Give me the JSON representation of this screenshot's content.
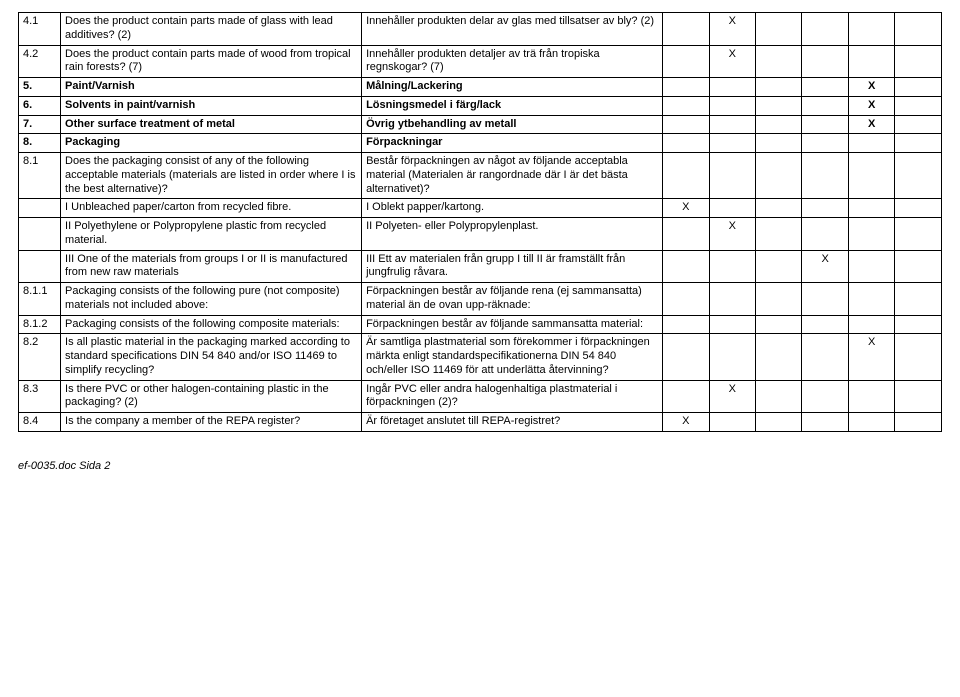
{
  "rows": [
    {
      "num": "4.1",
      "en": "Does the product contain parts made of glass with lead additives? (2)",
      "sv": "Innehåller produkten delar av glas med tillsatser av bly? (2)",
      "x": [
        false,
        true,
        false,
        false,
        false,
        false
      ],
      "bold": false
    },
    {
      "num": "4.2",
      "en": "Does the product contain parts made of wood from tropical rain forests? (7)",
      "sv": "Innehåller produkten detaljer av trä från tropiska regnskogar? (7)",
      "x": [
        false,
        true,
        false,
        false,
        false,
        false
      ],
      "bold": false
    },
    {
      "num": "5.",
      "en": "Paint/Varnish",
      "sv": "Målning/Lackering",
      "x": [
        false,
        false,
        false,
        false,
        true,
        false
      ],
      "bold": true
    },
    {
      "num": "6.",
      "en": "Solvents in paint/varnish",
      "sv": "Lösningsmedel i färg/lack",
      "x": [
        false,
        false,
        false,
        false,
        true,
        false
      ],
      "bold": true
    },
    {
      "num": "7.",
      "en": "Other surface treatment of metal",
      "sv": "Övrig ytbehandling av metall",
      "x": [
        false,
        false,
        false,
        false,
        true,
        false
      ],
      "bold": true
    },
    {
      "num": "8.",
      "en": "Packaging",
      "sv": "Förpackningar",
      "x": [
        false,
        false,
        false,
        false,
        false,
        false
      ],
      "bold": true
    },
    {
      "num": "8.1",
      "en": "Does the packaging consist of any of the following acceptable materials (materials are listed in order where I is the best alternative)?",
      "sv": "Består förpackningen av något av följande acceptabla material (Materialen är rangordnade där I är det bästa alternativet)?",
      "x": [
        false,
        false,
        false,
        false,
        false,
        false
      ],
      "bold": false
    },
    {
      "num": "",
      "en": "I Unbleached paper/carton from recycled fibre.",
      "sv": "I    Oblekt papper/kartong.",
      "x": [
        true,
        false,
        false,
        false,
        false,
        false
      ],
      "bold": false
    },
    {
      "num": "",
      "en": "II Polyethylene or Polypropylene plastic from recycled material.",
      "sv": "II   Polyeten- eller Polypropylenplast.",
      "x": [
        false,
        true,
        false,
        false,
        false,
        false
      ],
      "bold": false
    },
    {
      "num": "",
      "en": "III One of the materials from groups I or II is manufactured from new raw materials",
      "sv": "III  Ett av materialen från grupp I till II är framställt från jungfrulig råvara.",
      "x": [
        false,
        false,
        false,
        true,
        false,
        false
      ],
      "bold": false
    },
    {
      "num": "8.1.1",
      "en": "Packaging consists of the following pure (not composite) materials not included above:",
      "sv": "Förpackningen består av följande rena (ej sammansatta) material än de ovan upp-räknade:",
      "x": [
        false,
        false,
        false,
        false,
        false,
        false
      ],
      "bold": false
    },
    {
      "num": "8.1.2",
      "en": "Packaging consists of the following composite materials:",
      "sv": "Förpackningen består av följande sammansatta material:",
      "x": [
        false,
        false,
        false,
        false,
        false,
        false
      ],
      "bold": false
    },
    {
      "num": "8.2",
      "en": "Is all plastic material in the packaging marked according to standard specifications DIN 54 840 and/or ISO 11469 to simplify recycling?",
      "sv": "Är samtliga plastmaterial som förekommer i förpackningen märkta enligt standardspecifikationerna DIN 54 840 och/eller ISO 11469 för att underlätta återvinning?",
      "x": [
        false,
        false,
        false,
        false,
        true,
        false
      ],
      "bold": false
    },
    {
      "num": "8.3",
      "en": "Is there PVC or other halogen-containing plastic in the packaging? (2)",
      "sv": "Ingår PVC eller andra halogenhaltiga plastmaterial i förpackningen (2)?",
      "x": [
        false,
        true,
        false,
        false,
        false,
        false
      ],
      "bold": false
    },
    {
      "num": "8.4",
      "en": "Is the company a member of the REPA register?",
      "sv": "Är företaget anslutet till REPA-registret?",
      "x": [
        true,
        false,
        false,
        false,
        false,
        false
      ],
      "bold": false
    }
  ],
  "x_mark": "X",
  "footer": "ef-0035.doc Sida 2"
}
